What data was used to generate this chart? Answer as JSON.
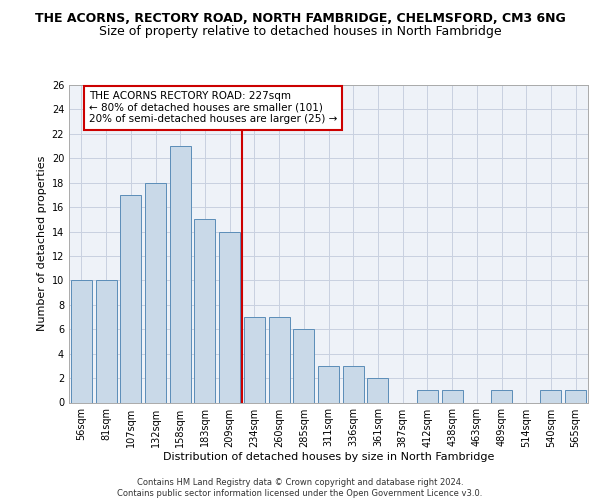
{
  "title1": "THE ACORNS, RECTORY ROAD, NORTH FAMBRIDGE, CHELMSFORD, CM3 6NG",
  "title2": "Size of property relative to detached houses in North Fambridge",
  "xlabel": "Distribution of detached houses by size in North Fambridge",
  "ylabel": "Number of detached properties",
  "categories": [
    "56sqm",
    "81sqm",
    "107sqm",
    "132sqm",
    "158sqm",
    "183sqm",
    "209sqm",
    "234sqm",
    "260sqm",
    "285sqm",
    "311sqm",
    "336sqm",
    "361sqm",
    "387sqm",
    "412sqm",
    "438sqm",
    "463sqm",
    "489sqm",
    "514sqm",
    "540sqm",
    "565sqm"
  ],
  "values": [
    10,
    10,
    17,
    18,
    21,
    15,
    14,
    7,
    7,
    6,
    3,
    3,
    2,
    0,
    1,
    1,
    0,
    1,
    0,
    1,
    1
  ],
  "bar_color": "#c9d9e8",
  "bar_edge_color": "#5b8db8",
  "grid_color": "#c8d0e0",
  "bg_color": "#eef2f8",
  "vline_x": 6.5,
  "vline_color": "#cc0000",
  "annotation_text": "THE ACORNS RECTORY ROAD: 227sqm\n← 80% of detached houses are smaller (101)\n20% of semi-detached houses are larger (25) →",
  "annotation_box_color": "#ffffff",
  "annotation_box_edge": "#cc0000",
  "ylim": [
    0,
    26
  ],
  "yticks": [
    0,
    2,
    4,
    6,
    8,
    10,
    12,
    14,
    16,
    18,
    20,
    22,
    24,
    26
  ],
  "footer1": "Contains HM Land Registry data © Crown copyright and database right 2024.",
  "footer2": "Contains public sector information licensed under the Open Government Licence v3.0.",
  "title1_fontsize": 9,
  "title2_fontsize": 9,
  "axis_label_fontsize": 8,
  "tick_fontsize": 7,
  "annotation_fontsize": 7.5
}
